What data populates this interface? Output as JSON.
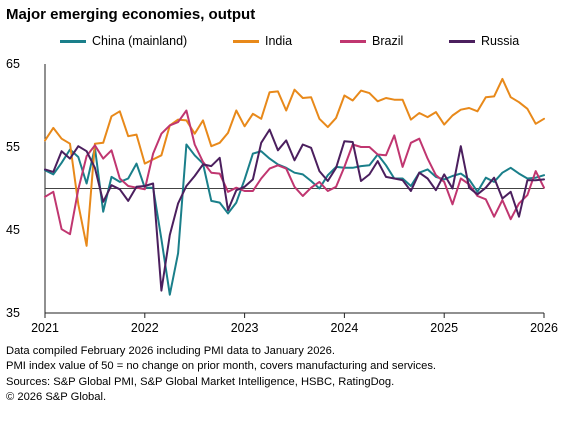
{
  "title": "Major emerging economies, output",
  "notes": [
    "Data compiled February 2026 including PMI data to January 2026.",
    "PMI index value of 50 = no change on prior month, covers manufacturing and services.",
    "Sources: S&P Global PMI, S&P Global Market Intelligence, HSBC, RatingDog.",
    "© 2026 S&P Global."
  ],
  "chart_data": {
    "type": "line",
    "title": "Major emerging economies, output",
    "xlabel": "",
    "ylabel": "",
    "ylim": [
      35,
      65
    ],
    "yticks": [
      35,
      45,
      55,
      65
    ],
    "xlim": [
      "2021-01",
      "2026-01"
    ],
    "xticks": [
      "2021",
      "2022",
      "2023",
      "2024",
      "2025",
      "2026"
    ],
    "reference_line": 50,
    "grid": false,
    "legend": "top",
    "x": [
      "2021-01",
      "2021-02",
      "2021-03",
      "2021-04",
      "2021-05",
      "2021-06",
      "2021-07",
      "2021-08",
      "2021-09",
      "2021-10",
      "2021-11",
      "2021-12",
      "2022-01",
      "2022-02",
      "2022-03",
      "2022-04",
      "2022-05",
      "2022-06",
      "2022-07",
      "2022-08",
      "2022-09",
      "2022-10",
      "2022-11",
      "2022-12",
      "2023-01",
      "2023-02",
      "2023-03",
      "2023-04",
      "2023-05",
      "2023-06",
      "2023-07",
      "2023-08",
      "2023-09",
      "2023-10",
      "2023-11",
      "2023-12",
      "2024-01",
      "2024-02",
      "2024-03",
      "2024-04",
      "2024-05",
      "2024-06",
      "2024-07",
      "2024-08",
      "2024-09",
      "2024-10",
      "2024-11",
      "2024-12",
      "2025-01",
      "2025-02",
      "2025-03",
      "2025-04",
      "2025-05",
      "2025-06",
      "2025-07",
      "2025-08",
      "2025-09",
      "2025-10",
      "2025-11",
      "2025-12",
      "2026-01"
    ],
    "series": [
      {
        "name": "China (mainland)",
        "color": "#1a7f8a",
        "values": [
          52.2,
          51.7,
          53.1,
          54.7,
          53.8,
          50.6,
          54.9,
          47.2,
          51.4,
          50.8,
          51.2,
          53.0,
          50.1,
          50.1,
          43.9,
          37.2,
          42.2,
          55.3,
          54.0,
          53.0,
          48.5,
          48.3,
          47.0,
          48.3,
          51.1,
          54.2,
          54.5,
          53.6,
          52.9,
          52.5,
          51.9,
          51.7,
          50.9,
          50.0,
          51.6,
          52.6,
          52.5,
          52.5,
          52.7,
          52.8,
          54.1,
          52.8,
          51.2,
          51.2,
          50.3,
          51.9,
          52.3,
          51.4,
          51.1,
          51.5,
          51.8,
          51.1,
          49.6,
          51.3,
          50.8,
          51.9,
          52.5,
          51.8,
          51.2,
          51.3,
          51.6
        ]
      },
      {
        "name": "India",
        "color": "#e8891a",
        "values": [
          55.8,
          57.3,
          56.0,
          55.4,
          48.1,
          43.1,
          55.4,
          55.5,
          58.7,
          59.3,
          56.3,
          56.5,
          53.0,
          53.5,
          54.0,
          57.6,
          58.3,
          58.2,
          56.6,
          58.2,
          55.1,
          55.5,
          56.7,
          59.4,
          57.5,
          59.0,
          58.4,
          61.6,
          61.7,
          59.4,
          61.9,
          60.9,
          61.0,
          58.4,
          57.4,
          58.5,
          61.2,
          60.6,
          61.8,
          61.5,
          60.5,
          60.9,
          60.7,
          60.7,
          58.3,
          59.1,
          58.6,
          59.2,
          57.7,
          58.8,
          59.5,
          59.7,
          59.3,
          61.0,
          61.1,
          63.2,
          61.0,
          60.4,
          59.6,
          57.8,
          58.4
        ]
      },
      {
        "name": "Brazil",
        "color": "#c03670",
        "values": [
          49.0,
          49.6,
          45.1,
          44.5,
          49.9,
          53.9,
          55.2,
          53.6,
          54.6,
          51.2,
          50.3,
          50.1,
          49.9,
          54.2,
          56.6,
          57.6,
          58.0,
          59.4,
          55.3,
          53.2,
          51.9,
          51.8,
          49.6,
          50.1,
          49.7,
          49.7,
          51.2,
          52.4,
          52.8,
          52.4,
          50.2,
          49.1,
          50.1,
          50.8,
          49.7,
          50.2,
          52.6,
          55.3,
          55.0,
          55.0,
          54.1,
          54.0,
          56.4,
          52.6,
          55.5,
          56.0,
          53.6,
          51.6,
          50.8,
          48.1,
          51.2,
          50.5,
          49.1,
          48.7,
          46.6,
          48.6,
          46.3,
          48.2,
          49.2,
          52.1,
          50.1
        ]
      },
      {
        "name": "Russia",
        "color": "#4b1f5e",
        "values": [
          52.3,
          52.0,
          54.5,
          53.6,
          55.1,
          54.5,
          52.5,
          48.4,
          50.4,
          49.9,
          48.5,
          50.2,
          50.3,
          50.6,
          37.7,
          44.4,
          48.2,
          50.3,
          51.5,
          52.9,
          52.7,
          53.7,
          47.4,
          49.8,
          50.2,
          51.1,
          55.5,
          57.1,
          54.6,
          55.8,
          53.4,
          55.3,
          54.9,
          52.1,
          50.9,
          52.5,
          55.7,
          55.6,
          50.9,
          51.7,
          53.3,
          51.4,
          51.2,
          51.0,
          49.7,
          51.9,
          51.2,
          49.8,
          51.7,
          50.0,
          55.1,
          50.1,
          49.3,
          50.1,
          51.3,
          48.8,
          49.6,
          46.6,
          51.0,
          51.0,
          51.1
        ]
      }
    ]
  }
}
